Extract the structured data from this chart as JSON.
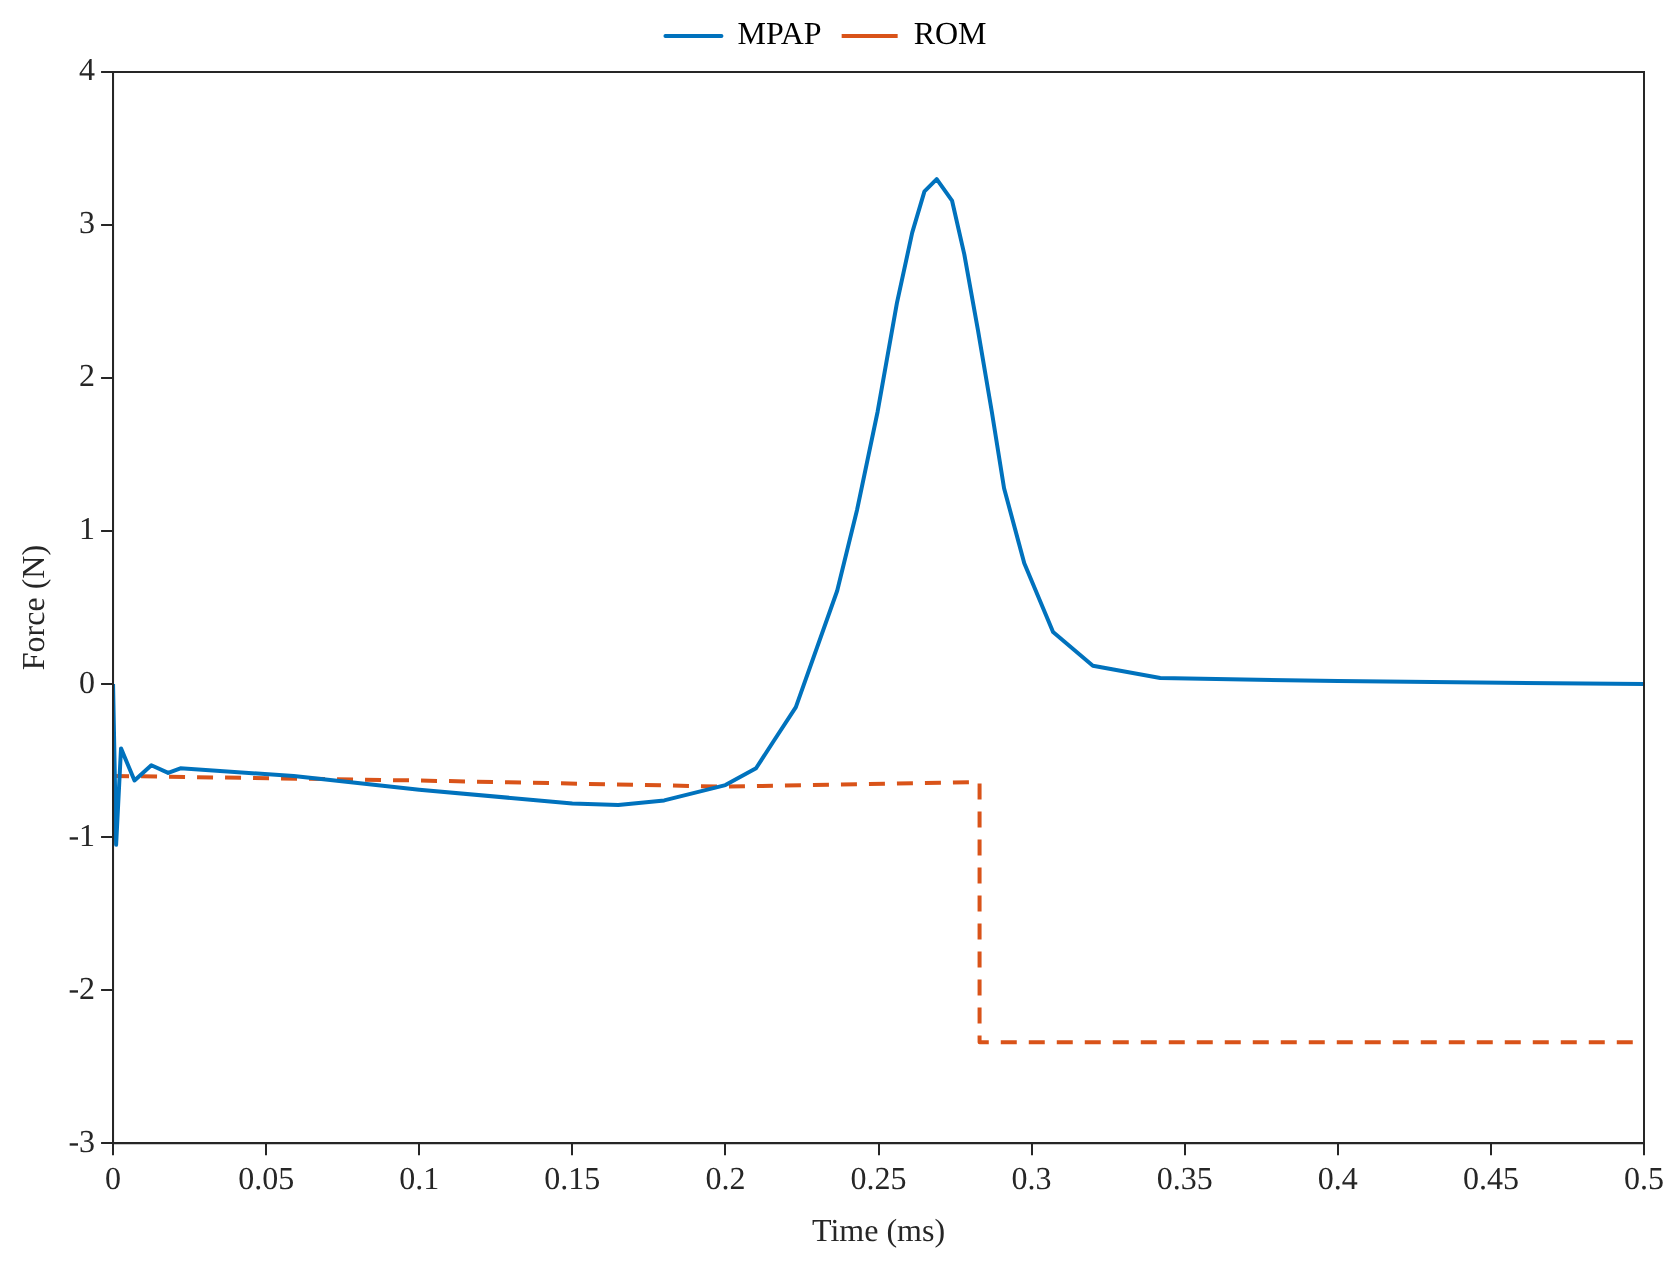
{
  "chart_data": {
    "type": "line",
    "xlabel": "Time (ms)",
    "ylabel": "Force (N)",
    "xlim": [
      0,
      0.5
    ],
    "xticks": [
      0,
      0.05,
      0.1,
      0.15,
      0.2,
      0.25,
      0.3,
      0.35,
      0.4,
      0.45,
      0.5
    ],
    "ylim": [
      -3,
      4
    ],
    "yticks": [
      -3,
      -2,
      -1,
      0,
      1,
      2,
      3,
      4
    ],
    "grid": false,
    "legend": "top",
    "marker": "none",
    "series": [
      {
        "name": "MPAP",
        "color": "#0072bd",
        "line_style": "solid",
        "x": [
          0,
          0.001,
          0.0026,
          0.007,
          0.0125,
          0.018,
          0.022,
          0.059,
          0.1,
          0.15,
          0.165,
          0.18,
          0.2,
          0.21,
          0.2155,
          0.223,
          0.2365,
          0.243,
          0.2497,
          0.256,
          0.261,
          0.265,
          0.269,
          0.274,
          0.278,
          0.2825,
          0.287,
          0.291,
          0.2976,
          0.307,
          0.32,
          0.342,
          0.4,
          0.5
        ],
        "values": [
          0,
          -1.05,
          -0.42,
          -0.63,
          -0.53,
          -0.58,
          -0.55,
          -0.6,
          -0.69,
          -0.78,
          -0.79,
          -0.76,
          -0.66,
          -0.55,
          -0.38,
          -0.15,
          0.61,
          1.14,
          1.78,
          2.49,
          2.95,
          3.22,
          3.3,
          3.16,
          2.81,
          2.31,
          1.78,
          1.28,
          0.79,
          0.34,
          0.12,
          0.04,
          0.02,
          0
        ]
      },
      {
        "name": "ROM",
        "color": "#d95319",
        "line_style": "dashed",
        "x": [
          0,
          0.1,
          0.2,
          0.283,
          0.283,
          0.5
        ],
        "values": [
          -0.6,
          -0.63,
          -0.67,
          -0.64,
          -2.34,
          -2.34
        ]
      }
    ]
  }
}
